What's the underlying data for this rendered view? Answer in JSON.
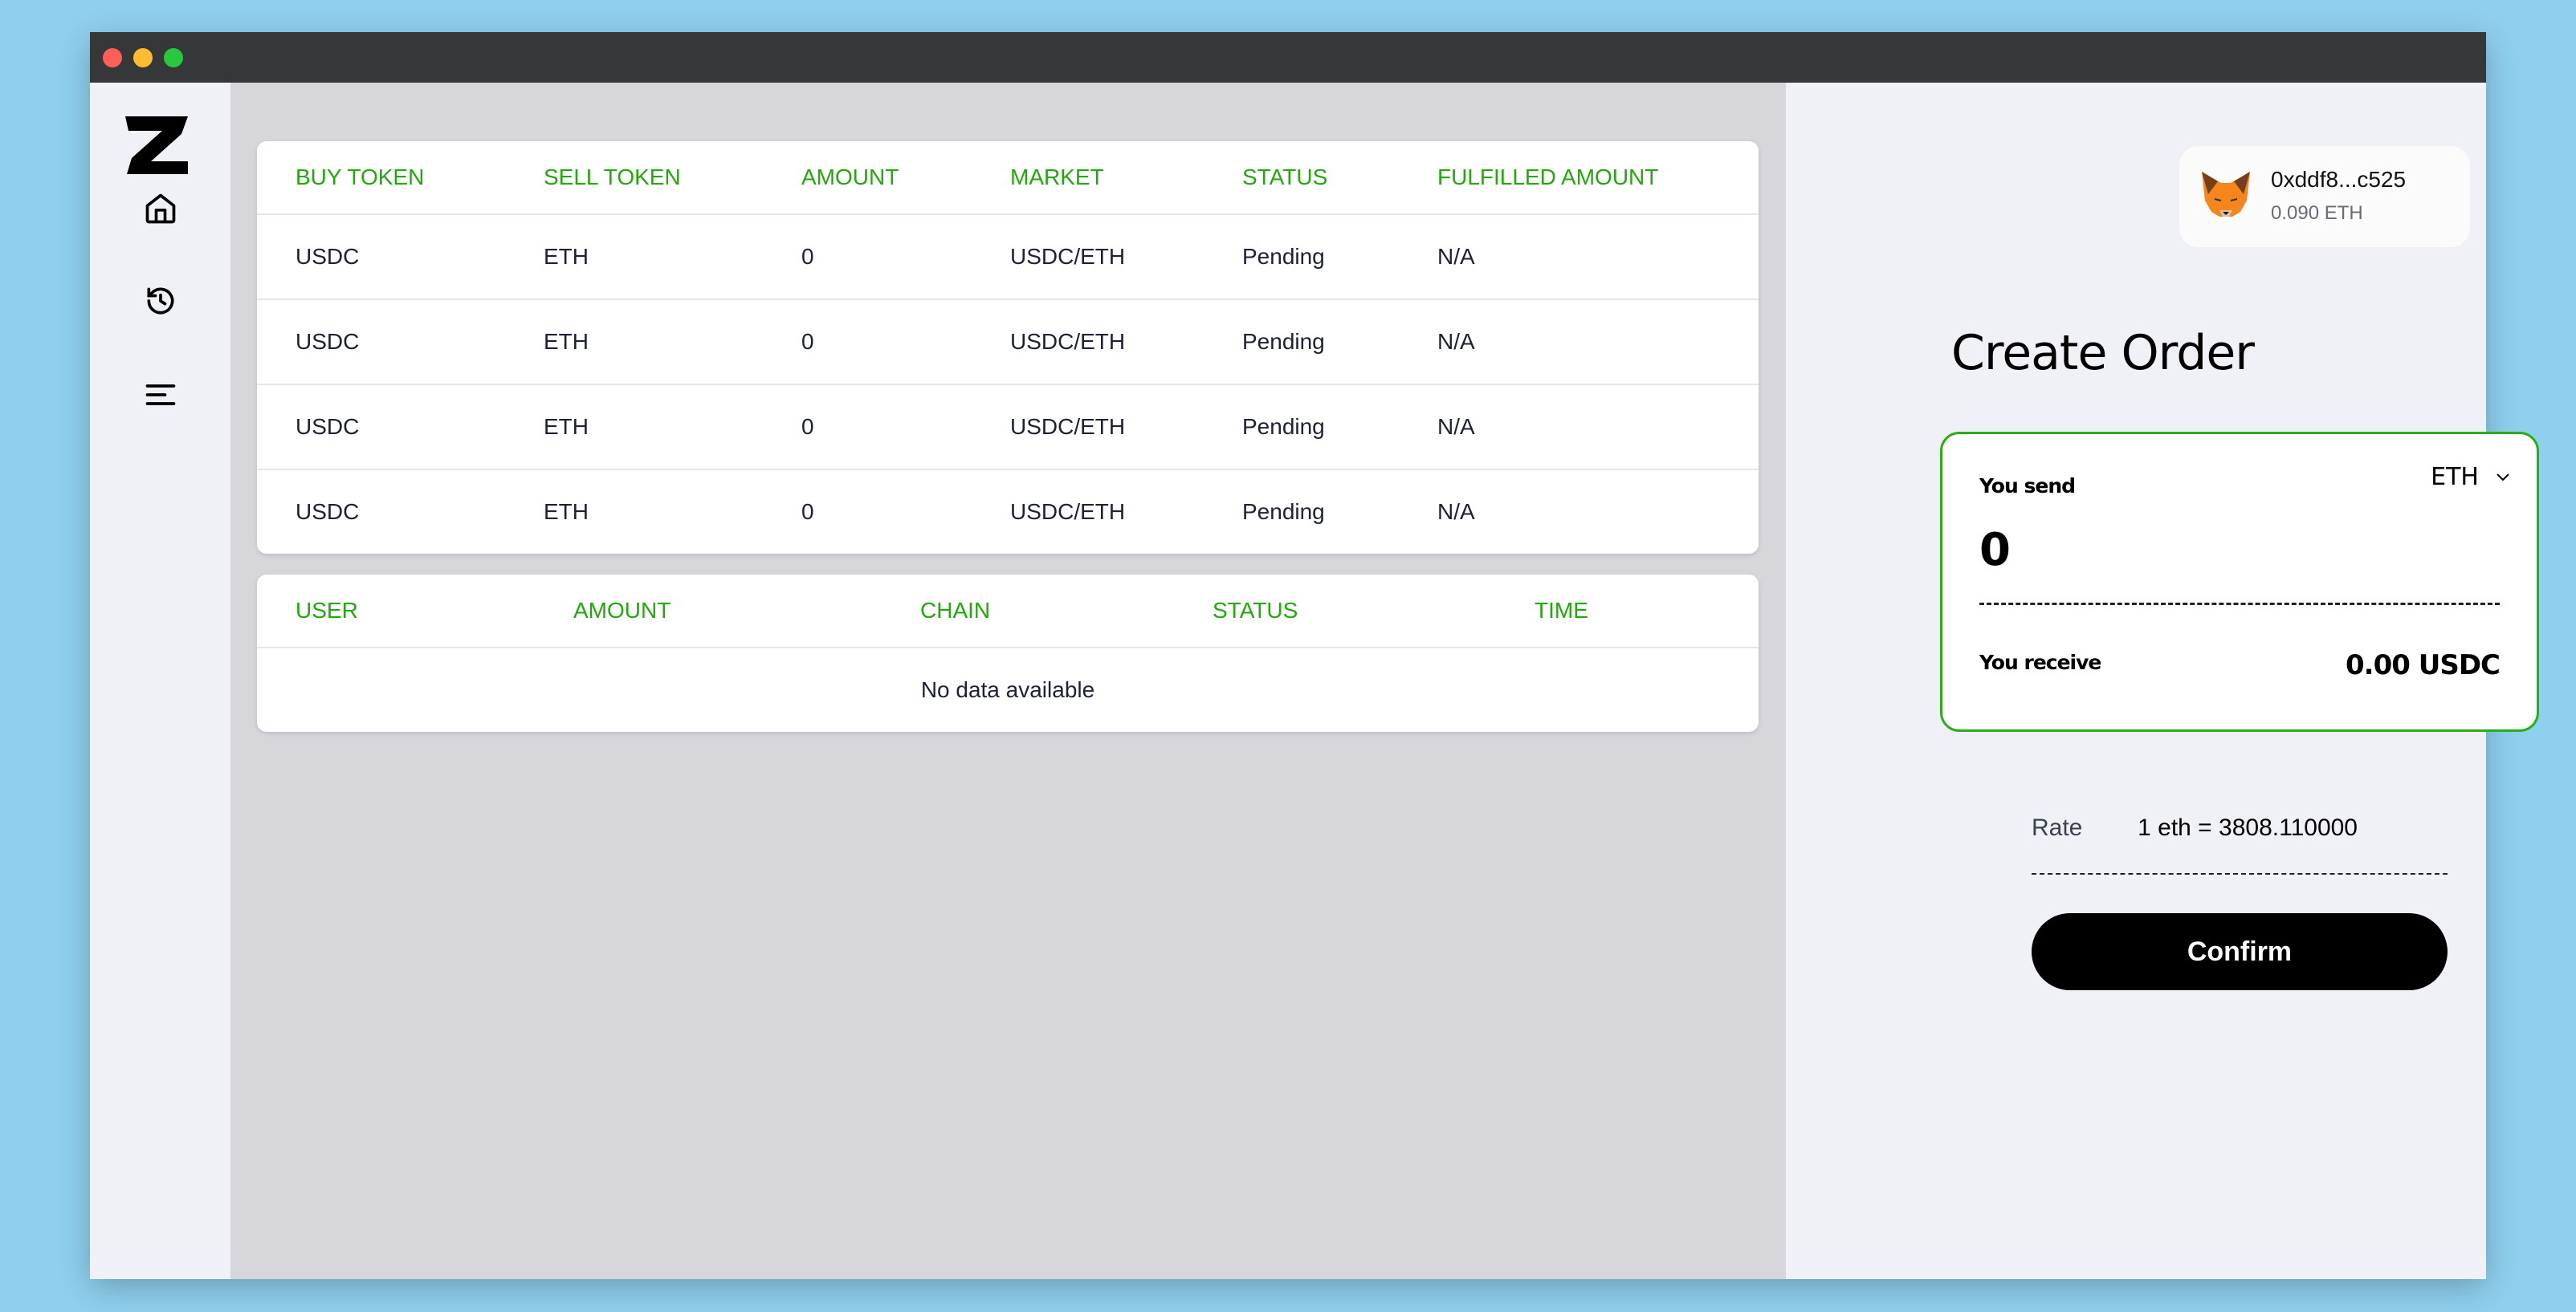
{
  "orders_table": {
    "headers": [
      "BUY TOKEN",
      "SELL TOKEN",
      "AMOUNT",
      "MARKET",
      "STATUS",
      "FULFILLED AMOUNT"
    ],
    "rows": [
      [
        "USDC",
        "ETH",
        "0",
        "USDC/ETH",
        "Pending",
        "N/A"
      ],
      [
        "USDC",
        "ETH",
        "0",
        "USDC/ETH",
        "Pending",
        "N/A"
      ],
      [
        "USDC",
        "ETH",
        "0",
        "USDC/ETH",
        "Pending",
        "N/A"
      ],
      [
        "USDC",
        "ETH",
        "0",
        "USDC/ETH",
        "Pending",
        "N/A"
      ]
    ]
  },
  "transfers_table": {
    "headers": [
      "USER",
      "AMOUNT",
      "CHAIN",
      "STATUS",
      "TIME"
    ],
    "empty_text": "No data available"
  },
  "wallet": {
    "address": "0xddf8...c525",
    "balance": "0.090 ETH",
    "icon": "metamask-fox-icon"
  },
  "order": {
    "title": "Create Order",
    "send_label": "You send",
    "send_value": "0",
    "send_token": "ETH",
    "receive_label": "You receive",
    "receive_value": "0.00 USDC",
    "rate_label": "Rate",
    "rate_value": "1 eth = 3808.110000",
    "confirm_label": "Confirm"
  },
  "sidebar": {
    "items": [
      "home-icon",
      "history-icon",
      "menu-icon"
    ]
  },
  "colors": {
    "accent": "#21a90a",
    "border": "#2aae16",
    "button": "#000000"
  }
}
